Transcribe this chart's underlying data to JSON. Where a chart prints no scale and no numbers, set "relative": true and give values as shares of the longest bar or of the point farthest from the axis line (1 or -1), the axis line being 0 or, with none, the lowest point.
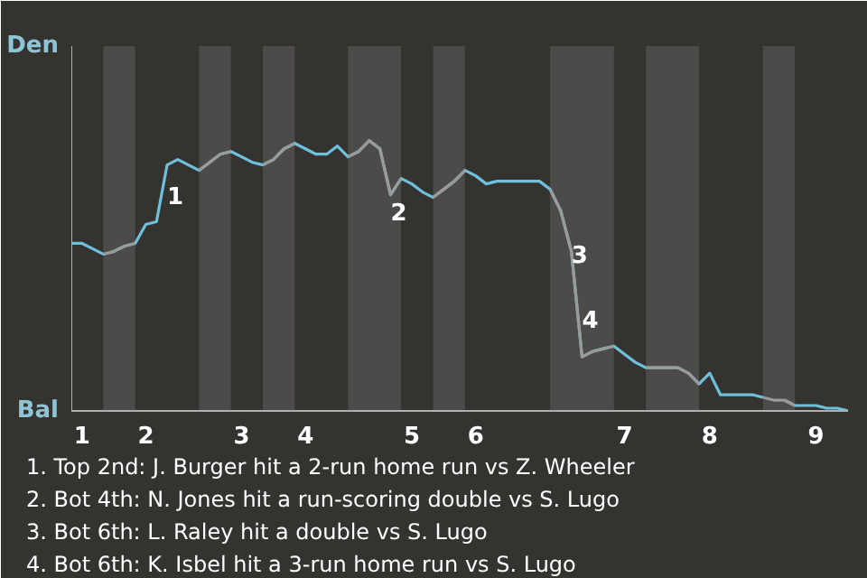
{
  "chart_data": {
    "type": "line",
    "relative": true,
    "categories": [
      null,
      "1",
      null,
      null,
      null,
      null,
      null,
      "2",
      null,
      null,
      null,
      null,
      null,
      null,
      null,
      null,
      "3",
      null,
      null,
      null,
      null,
      null,
      "4",
      null,
      null,
      null,
      null,
      null,
      null,
      null,
      null,
      null,
      "5",
      null,
      null,
      null,
      null,
      null,
      "6",
      null,
      null,
      null,
      null,
      null,
      null,
      null,
      null,
      null,
      null,
      null,
      null,
      null,
      "7",
      null,
      null,
      null,
      null,
      null,
      null,
      null,
      "8",
      null,
      null,
      null,
      null,
      null,
      null,
      null,
      null,
      null,
      "9",
      null,
      null,
      null
    ],
    "marker": "none",
    "line_style": "solid",
    "series": [
      {
        "color": "#6ec0dc",
        "values": [
          0.62,
          0.62,
          0.6,
          0.58,
          0.59,
          0.61,
          0.62,
          0.69,
          0.7,
          0.91,
          0.93,
          0.91,
          0.89,
          0.92,
          0.95,
          0.96,
          0.94,
          0.92,
          0.91,
          0.93,
          0.97,
          0.99,
          0.97,
          0.95,
          0.95,
          0.98,
          0.94,
          0.96,
          1.0,
          0.97,
          0.8,
          0.86,
          0.84,
          0.81,
          0.79,
          0.82,
          0.85,
          0.89,
          0.87,
          0.84,
          0.85,
          0.85,
          0.85,
          0.85,
          0.85,
          0.82,
          0.74,
          0.59,
          0.2,
          0.22,
          0.23,
          0.24,
          0.21,
          0.18,
          0.16,
          0.16,
          0.16,
          0.16,
          0.14,
          0.1,
          0.14,
          0.06,
          0.06,
          0.06,
          0.06,
          0.05,
          null,
          0.04,
          0.02,
          0.02,
          0.02,
          0.01,
          0.01,
          0
        ]
      },
      {
        "color": "#9a9a9a",
        "values": [
          null,
          null,
          null,
          0.58,
          0.59,
          0.61,
          0.62,
          null,
          null,
          null,
          null,
          null,
          0.89,
          0.92,
          0.95,
          0.96,
          null,
          null,
          0.91,
          0.93,
          0.97,
          0.99,
          null,
          null,
          null,
          null,
          0.94,
          0.96,
          1.0,
          0.97,
          0.8,
          0.86,
          null,
          null,
          0.79,
          0.82,
          0.85,
          0.89,
          null,
          null,
          null,
          null,
          null,
          null,
          null,
          0.82,
          0.74,
          0.59,
          0.2,
          0.22,
          0.23,
          0.24,
          null,
          null,
          0.16,
          0.16,
          0.16,
          0.16,
          0.14,
          0.1,
          null,
          null,
          null,
          null,
          null,
          0.05,
          0.04,
          0.04,
          0.02,
          null,
          null,
          null,
          null,
          null
        ]
      }
    ],
    "annotations": [
      "Den",
      "Bal",
      "1",
      "2",
      "3",
      "4",
      "1. Top 2nd: J. Burger hit a 2-run home run vs Z. Wheeler",
      "2. Bot 4th: N. Jones hit a run-scoring double vs S. Lugo",
      "3. Bot 6th: L. Raley hit a double vs S. Lugo",
      "4. Bot 6th: K. Isbel hit a 3-run home run vs S. Lugo"
    ]
  }
}
